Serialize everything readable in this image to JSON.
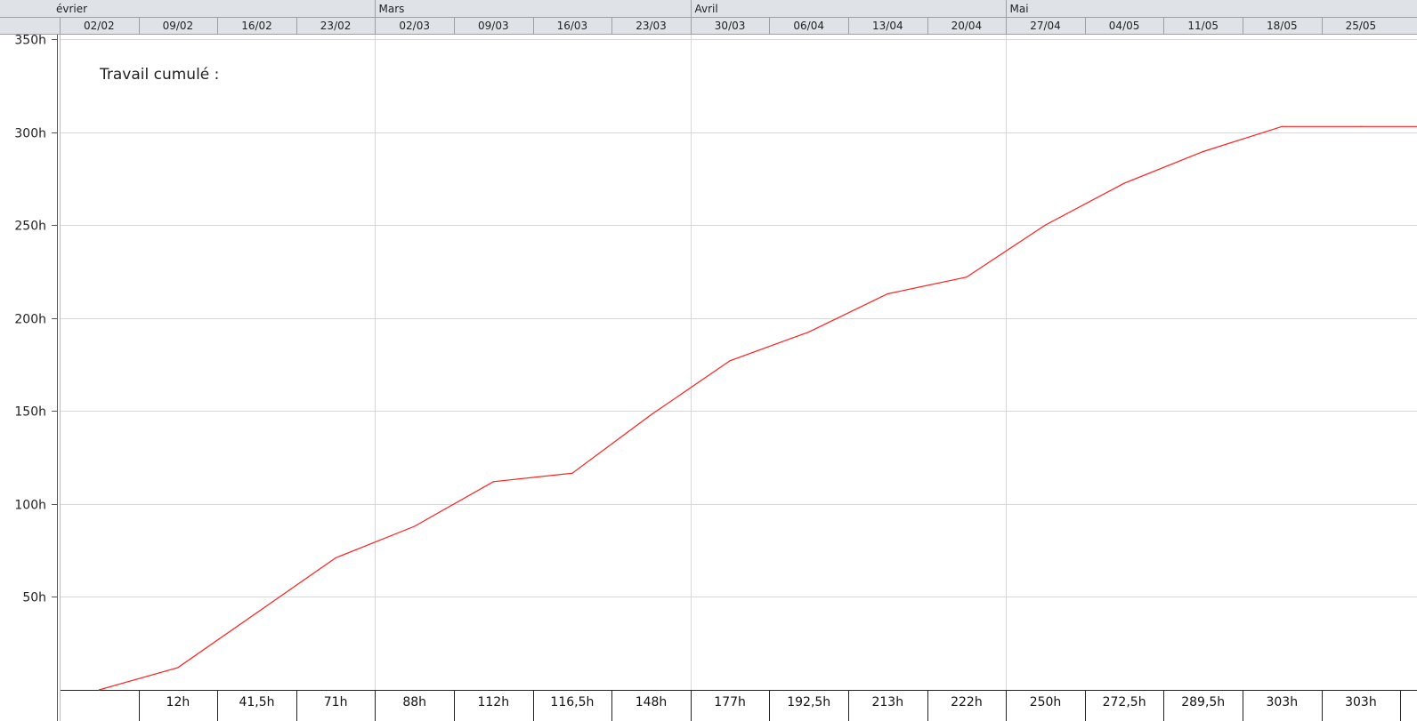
{
  "colors": {
    "line": "#ff1e1e",
    "header_bg": "#dfe3e8",
    "header_border": "#9aa0a6",
    "grid": "#d7d7d7",
    "axis": "#555555"
  },
  "chart_data": {
    "type": "line",
    "title": "Travail cumulé :",
    "ylim": [
      0,
      350
    ],
    "yticks": [
      {
        "value": 50,
        "label": "50h"
      },
      {
        "value": 100,
        "label": "100h"
      },
      {
        "value": 150,
        "label": "150h"
      },
      {
        "value": 200,
        "label": "200h"
      },
      {
        "value": 250,
        "label": "250h"
      },
      {
        "value": 300,
        "label": "300h"
      },
      {
        "value": 350,
        "label": "350h"
      }
    ],
    "months": [
      {
        "label": "évrier",
        "start_week": 0
      },
      {
        "label": "Mars",
        "start_week": 4
      },
      {
        "label": "Avril",
        "start_week": 8
      },
      {
        "label": "Mai",
        "start_week": 12
      }
    ],
    "weeks": [
      "02/02",
      "09/02",
      "16/02",
      "23/02",
      "02/03",
      "09/03",
      "16/03",
      "23/03",
      "30/03",
      "06/04",
      "13/04",
      "20/04",
      "27/04",
      "04/05",
      "11/05",
      "18/05",
      "25/05"
    ],
    "series": [
      {
        "name": "Travail cumulé",
        "values": [
          0,
          12,
          41.5,
          71,
          88,
          112,
          116.5,
          148,
          177,
          192.5,
          213,
          222,
          250,
          272.5,
          289.5,
          303,
          303
        ]
      }
    ],
    "value_labels": [
      "",
      "12h",
      "41,5h",
      "71h",
      "88h",
      "112h",
      "116,5h",
      "148h",
      "177h",
      "192,5h",
      "213h",
      "222h",
      "250h",
      "272,5h",
      "289,5h",
      "303h",
      "303h"
    ]
  }
}
